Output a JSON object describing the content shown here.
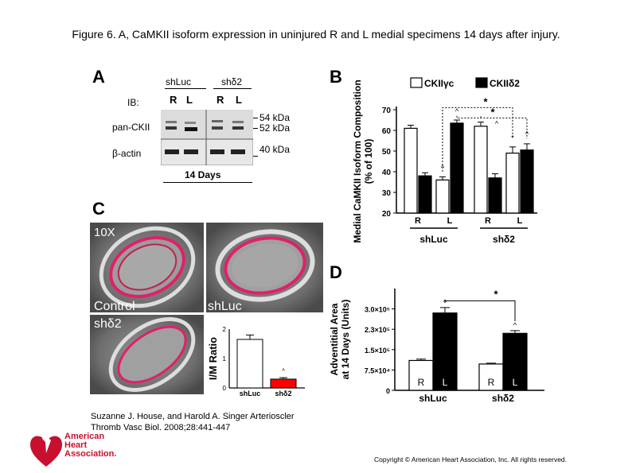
{
  "title": "Figure 6. A, CaMKII isoform expression in uninjured R and L medial specimens 14 days after injury.",
  "panelA": {
    "label": "A",
    "groups": [
      "shLuc",
      "shδ2"
    ],
    "lanes": [
      "R",
      "L",
      "R",
      "L"
    ],
    "ib_label": "IB:",
    "rows": [
      "pan-CKII",
      "β-actin"
    ],
    "markers": [
      "54 kDa",
      "52 kDa",
      "40 kDa"
    ],
    "footer": "14 Days"
  },
  "panelB": {
    "label": "B",
    "legend": [
      "CKIIγc",
      "CKIIδ2"
    ]
  },
  "panelC": {
    "label": "C",
    "mag": "10X",
    "captions": [
      "Control",
      "shLuc",
      "shδ2"
    ],
    "inset_ylabel": "I/M Ratio",
    "inset_yticks": [
      "2",
      "1",
      "0"
    ],
    "inset_categories": [
      "shLuc",
      "shδ2"
    ],
    "inset_sig": "^"
  },
  "panelD": {
    "label": "D",
    "bar_labels": [
      "R",
      "L",
      "R",
      "L"
    ]
  },
  "chart_data": [
    {
      "type": "bar",
      "panel": "B",
      "ylabel": "Medial CaMKII Isoform Composition (% of 100)",
      "ylim": [
        20,
        70
      ],
      "yticks": [
        "70",
        "60",
        "50",
        "40",
        "30",
        "20"
      ],
      "categories": [
        "R",
        "L",
        "R",
        "L"
      ],
      "groups": [
        "shLuc",
        "shδ2"
      ],
      "series": [
        {
          "name": "CKIIγc",
          "values": [
            61,
            36,
            62,
            49
          ],
          "errors": [
            1.5,
            1.5,
            2,
            3
          ],
          "color": "#ffffff"
        },
        {
          "name": "CKIIδ2",
          "values": [
            38,
            63.5,
            37,
            50.5
          ],
          "errors": [
            1.5,
            1.5,
            2,
            3
          ],
          "color": "#000000"
        }
      ],
      "annotations": [
        "*",
        "*",
        "^",
        "^",
        "*",
        "^",
        "^"
      ]
    },
    {
      "type": "bar",
      "panel": "D",
      "ylabel": "Adventitial Area at 14 Days (Units)",
      "ylim": [
        0,
        375000
      ],
      "yticks": [
        "3.0×10⁵",
        "2.3×10⁵",
        "1.5×10⁵",
        "7.5×10⁴",
        "0"
      ],
      "categories": [
        "R",
        "L",
        "R",
        "L"
      ],
      "groups": [
        "shLuc",
        "shδ2"
      ],
      "values": [
        110000,
        285000,
        97000,
        210000
      ],
      "errors": [
        5000,
        20000,
        3000,
        10000
      ],
      "colors": [
        "#ffffff",
        "#000000",
        "#ffffff",
        "#000000"
      ],
      "annotations": [
        "^",
        "^",
        "*"
      ]
    },
    {
      "type": "bar",
      "panel": "C-inset",
      "ylabel": "I/M Ratio",
      "ylim": [
        0,
        2
      ],
      "categories": [
        "shLuc",
        "shδ2"
      ],
      "values": [
        1.65,
        0.3
      ],
      "errors": [
        0.15,
        0.05
      ],
      "colors": [
        "#ffffff",
        "#ff0000"
      ]
    }
  ],
  "citation": [
    "Suzanne J. House, and Harold A. Singer Arterioscler",
    "Thromb Vasc Biol. 2008;28:441-447"
  ],
  "copyright": "Copyright © American Heart Association, Inc. All rights reserved.",
  "aha_logo": [
    "American",
    "Heart",
    "Association."
  ]
}
